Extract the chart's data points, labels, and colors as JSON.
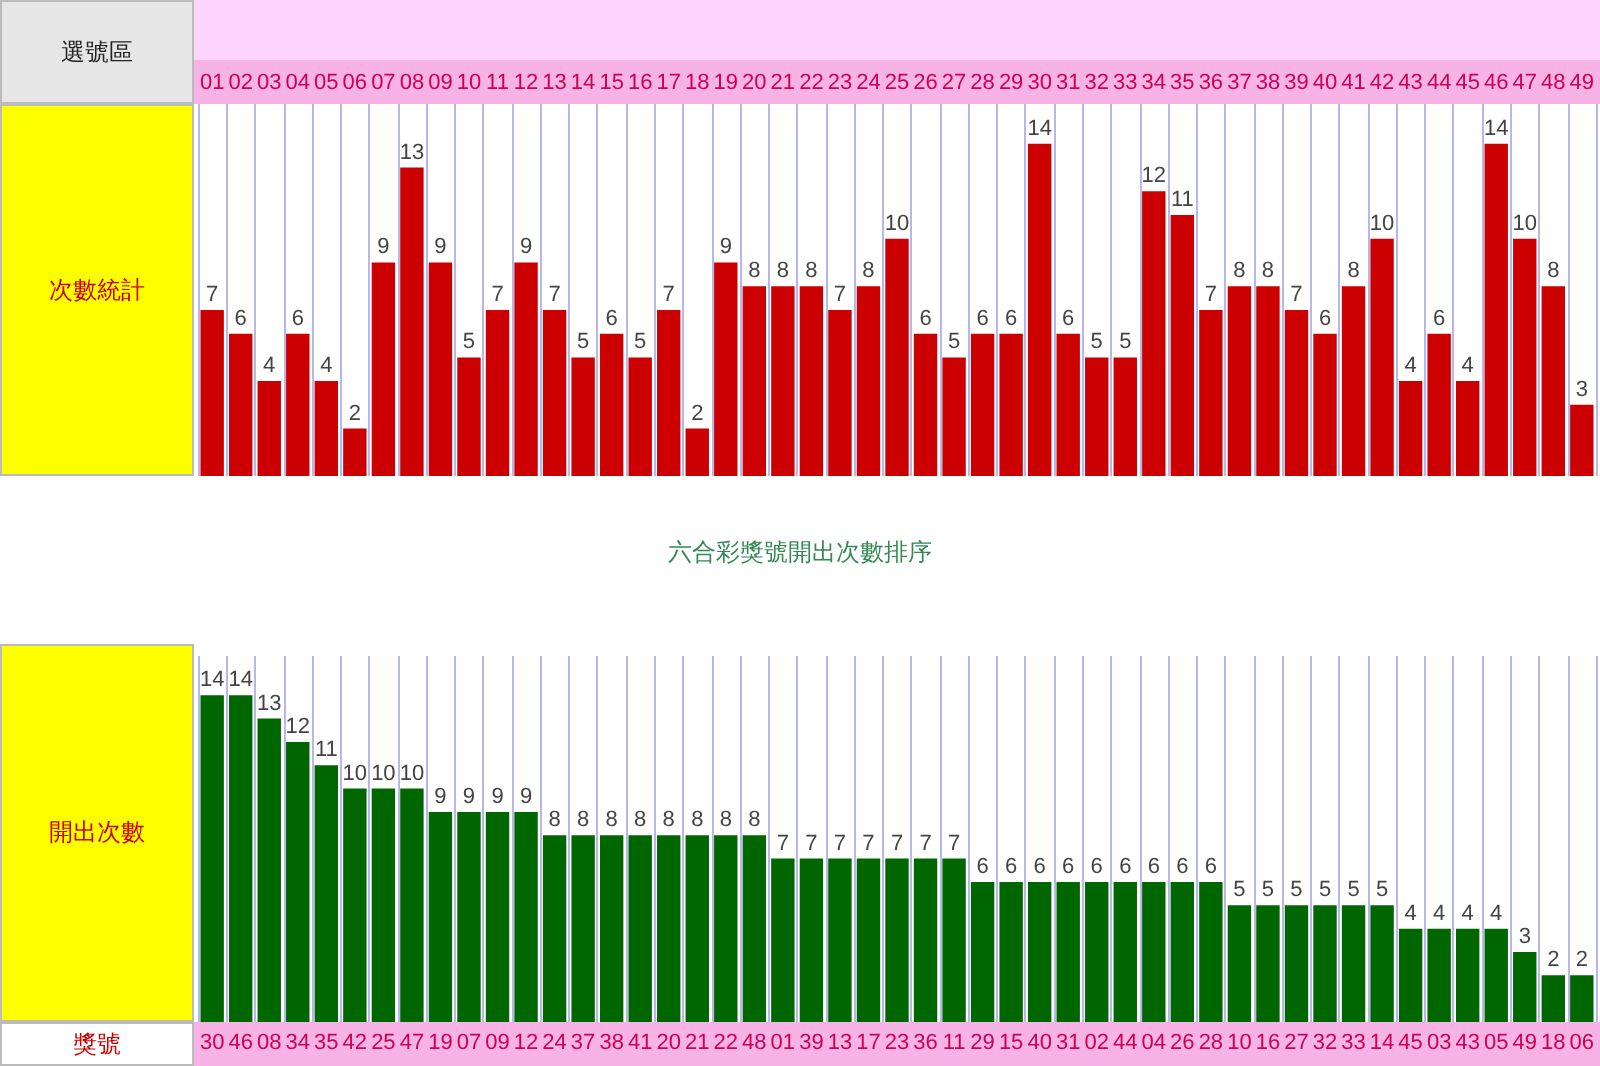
{
  "chart_data": [
    {
      "type": "bar",
      "xlabel": "選號區",
      "ylabel": "次數統計",
      "categories": [
        "01",
        "02",
        "03",
        "04",
        "05",
        "06",
        "07",
        "08",
        "09",
        "10",
        "11",
        "12",
        "13",
        "14",
        "15",
        "16",
        "17",
        "18",
        "19",
        "20",
        "21",
        "22",
        "23",
        "24",
        "25",
        "26",
        "27",
        "28",
        "29",
        "30",
        "31",
        "32",
        "33",
        "34",
        "35",
        "36",
        "37",
        "38",
        "39",
        "40",
        "41",
        "42",
        "43",
        "44",
        "45",
        "46",
        "47",
        "48",
        "49"
      ],
      "values": [
        7,
        6,
        4,
        6,
        4,
        2,
        9,
        13,
        9,
        5,
        7,
        9,
        7,
        5,
        6,
        5,
        7,
        2,
        9,
        8,
        8,
        8,
        7,
        8,
        10,
        6,
        5,
        6,
        6,
        14,
        6,
        5,
        5,
        12,
        11,
        7,
        8,
        8,
        7,
        6,
        8,
        10,
        4,
        6,
        4,
        14,
        10,
        8,
        3
      ],
      "color": "#cc0000",
      "data_labels": true,
      "grid": "x"
    },
    {
      "type": "bar",
      "title": "六合彩獎號開出次數排序",
      "xlabel": "獎號",
      "ylabel": "開出次數",
      "categories": [
        "30",
        "46",
        "08",
        "34",
        "35",
        "42",
        "25",
        "47",
        "19",
        "07",
        "09",
        "12",
        "24",
        "37",
        "38",
        "41",
        "20",
        "21",
        "22",
        "48",
        "01",
        "39",
        "13",
        "17",
        "23",
        "36",
        "11",
        "29",
        "15",
        "40",
        "31",
        "02",
        "44",
        "04",
        "26",
        "28",
        "10",
        "16",
        "27",
        "32",
        "33",
        "14",
        "45",
        "03",
        "43",
        "05",
        "49",
        "18",
        "06"
      ],
      "values": [
        14,
        14,
        13,
        12,
        11,
        10,
        10,
        10,
        9,
        9,
        9,
        9,
        8,
        8,
        8,
        8,
        8,
        8,
        8,
        8,
        7,
        7,
        7,
        7,
        7,
        7,
        7,
        6,
        6,
        6,
        6,
        6,
        6,
        6,
        6,
        6,
        5,
        5,
        5,
        5,
        5,
        5,
        4,
        4,
        4,
        4,
        3,
        2,
        2
      ],
      "color": "#006600",
      "data_labels": true,
      "grid": "x"
    }
  ]
}
